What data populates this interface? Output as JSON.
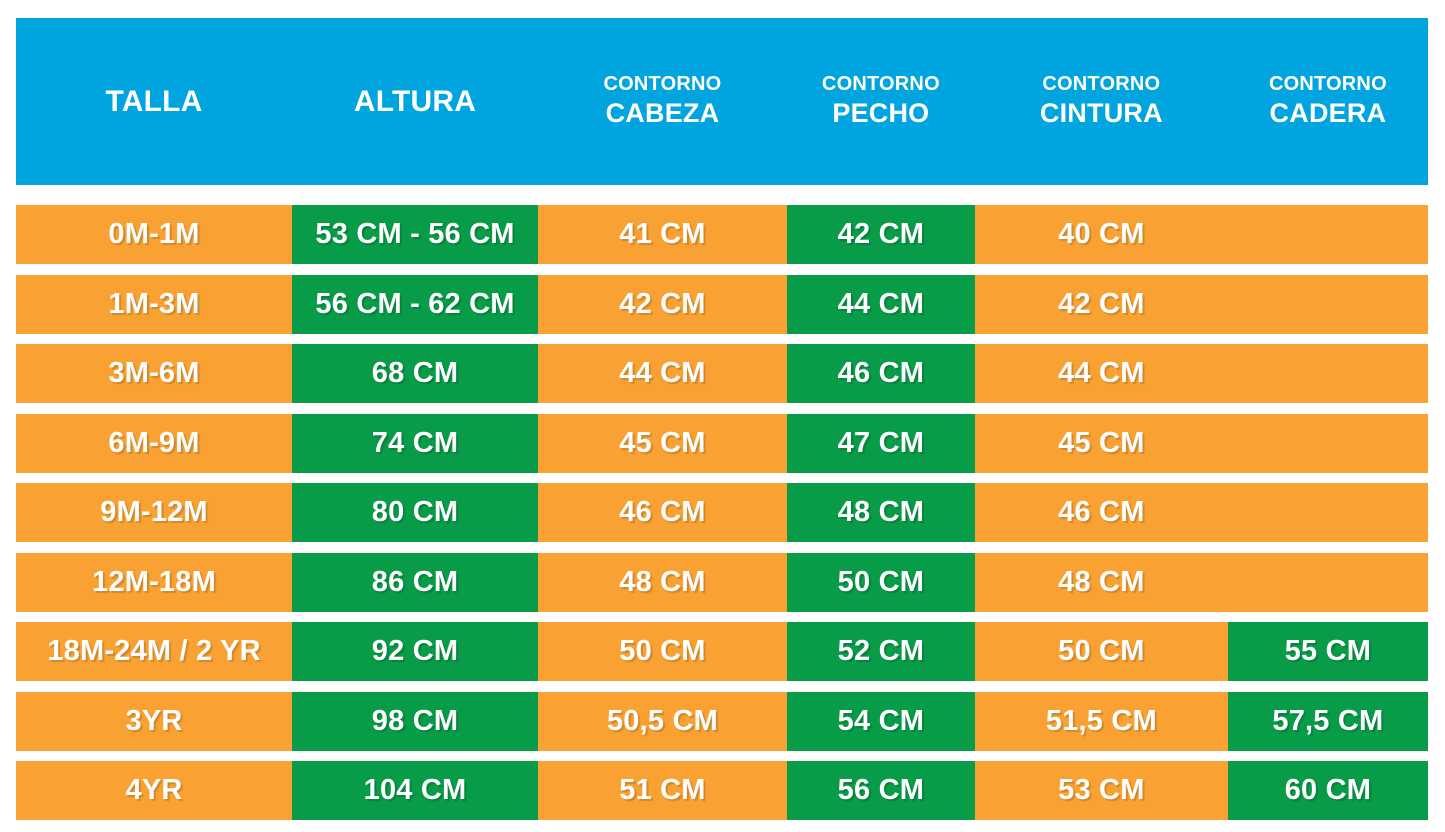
{
  "colors": {
    "header_bg": "#00A5E0",
    "header_text": "#FFFFFF",
    "cell_orange": "#F9A233",
    "cell_green": "#089C49",
    "cell_text": "#FFFFFF",
    "page_bg": "#FFFFFF"
  },
  "header": {
    "columns": [
      {
        "line1": "",
        "line2": "TALLA"
      },
      {
        "line1": "",
        "line2": "ALTURA"
      },
      {
        "line1": "CONTORNO",
        "line2": "CABEZA"
      },
      {
        "line1": "CONTORNO",
        "line2": "PECHO"
      },
      {
        "line1": "CONTORNO",
        "line2": "CINTURA"
      },
      {
        "line1": "CONTORNO",
        "line2": "CADERA"
      }
    ]
  },
  "chart_data": {
    "type": "table",
    "title": "",
    "columns": [
      "TALLA",
      "ALTURA",
      "CONTORNO CABEZA",
      "CONTORNO PECHO",
      "CONTORNO CINTURA",
      "CONTORNO CADERA"
    ],
    "rows": [
      {
        "cells": [
          {
            "text": "0M-1M",
            "bg": "orange"
          },
          {
            "text": "53 CM - 56 CM",
            "bg": "green"
          },
          {
            "text": "41 CM",
            "bg": "orange"
          },
          {
            "text": "42 CM",
            "bg": "green"
          },
          {
            "text": "40 CM",
            "bg": "orange"
          },
          {
            "text": "",
            "bg": "orange"
          }
        ]
      },
      {
        "cells": [
          {
            "text": "1M-3M",
            "bg": "orange"
          },
          {
            "text": "56 CM - 62 CM",
            "bg": "green"
          },
          {
            "text": "42 CM",
            "bg": "orange"
          },
          {
            "text": "44 CM",
            "bg": "green"
          },
          {
            "text": "42 CM",
            "bg": "orange"
          },
          {
            "text": "",
            "bg": "orange"
          }
        ]
      },
      {
        "cells": [
          {
            "text": "3M-6M",
            "bg": "orange"
          },
          {
            "text": "68 CM",
            "bg": "green"
          },
          {
            "text": "44 CM",
            "bg": "orange"
          },
          {
            "text": "46 CM",
            "bg": "green"
          },
          {
            "text": "44 CM",
            "bg": "orange"
          },
          {
            "text": "",
            "bg": "orange"
          }
        ]
      },
      {
        "cells": [
          {
            "text": "6M-9M",
            "bg": "orange"
          },
          {
            "text": "74 CM",
            "bg": "green"
          },
          {
            "text": "45 CM",
            "bg": "orange"
          },
          {
            "text": "47 CM",
            "bg": "green"
          },
          {
            "text": "45 CM",
            "bg": "orange"
          },
          {
            "text": "",
            "bg": "orange"
          }
        ]
      },
      {
        "cells": [
          {
            "text": "9M-12M",
            "bg": "orange"
          },
          {
            "text": "80 CM",
            "bg": "green"
          },
          {
            "text": "46 CM",
            "bg": "orange"
          },
          {
            "text": "48 CM",
            "bg": "green"
          },
          {
            "text": "46 CM",
            "bg": "orange"
          },
          {
            "text": "",
            "bg": "orange"
          }
        ]
      },
      {
        "cells": [
          {
            "text": "12M-18M",
            "bg": "orange"
          },
          {
            "text": "86 CM",
            "bg": "green"
          },
          {
            "text": "48 CM",
            "bg": "orange"
          },
          {
            "text": "50 CM",
            "bg": "green"
          },
          {
            "text": "48 CM",
            "bg": "orange"
          },
          {
            "text": "",
            "bg": "orange"
          }
        ]
      },
      {
        "cells": [
          {
            "text": "18M-24M / 2 YR",
            "bg": "orange"
          },
          {
            "text": "92 CM",
            "bg": "green"
          },
          {
            "text": "50 CM",
            "bg": "orange"
          },
          {
            "text": "52 CM",
            "bg": "green"
          },
          {
            "text": "50 CM",
            "bg": "orange"
          },
          {
            "text": "55 CM",
            "bg": "green"
          }
        ]
      },
      {
        "cells": [
          {
            "text": "3YR",
            "bg": "orange"
          },
          {
            "text": "98 CM",
            "bg": "green"
          },
          {
            "text": "50,5 CM",
            "bg": "orange"
          },
          {
            "text": "54 CM",
            "bg": "green"
          },
          {
            "text": "51,5 CM",
            "bg": "orange"
          },
          {
            "text": "57,5 CM",
            "bg": "green"
          }
        ]
      },
      {
        "cells": [
          {
            "text": "4YR",
            "bg": "orange"
          },
          {
            "text": "104 CM",
            "bg": "green"
          },
          {
            "text": "51 CM",
            "bg": "orange"
          },
          {
            "text": "56 CM",
            "bg": "green"
          },
          {
            "text": "53 CM",
            "bg": "orange"
          },
          {
            "text": "60 CM",
            "bg": "green"
          }
        ]
      }
    ]
  }
}
